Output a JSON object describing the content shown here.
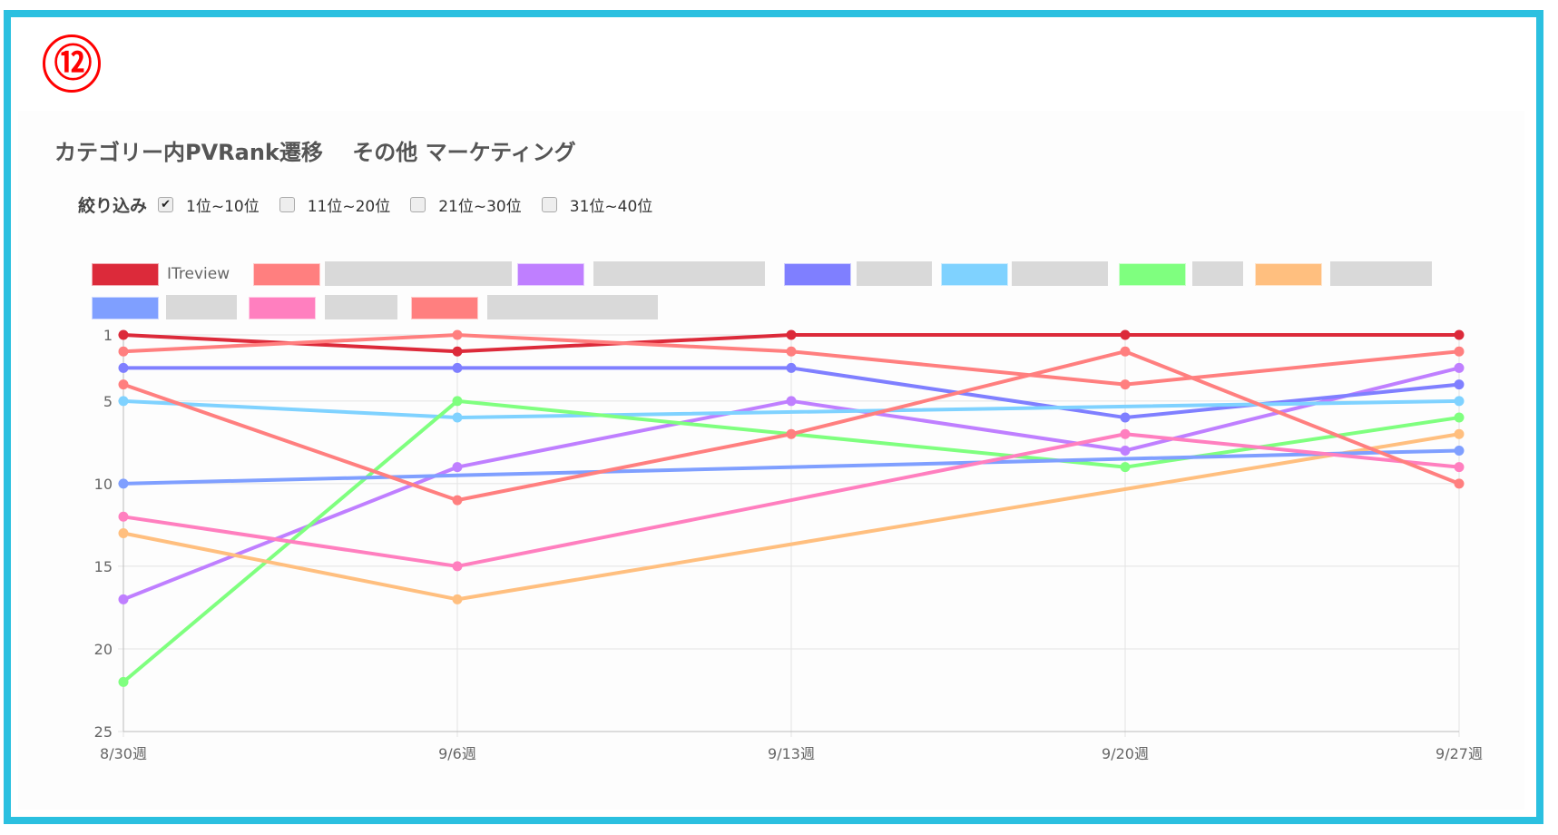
{
  "badge": "⑫",
  "title": "カテゴリー内PVRank遷移　 その他 マーケティング",
  "filter": {
    "label": "絞り込み",
    "options": [
      {
        "label": "1位~10位",
        "checked": true
      },
      {
        "label": "11位~20位",
        "checked": false
      },
      {
        "label": "21位~30位",
        "checked": false
      },
      {
        "label": "31位~40位",
        "checked": false
      }
    ]
  },
  "chart_data": {
    "type": "line",
    "categories": [
      "8/30週",
      "9/6週",
      "9/13週",
      "9/20週",
      "9/27週"
    ],
    "y_axis": {
      "reversed": true,
      "min": 1,
      "max": 25,
      "ticks": [
        1,
        5,
        10,
        15,
        20,
        25
      ]
    },
    "grid": true,
    "legend_position": "top",
    "series": [
      {
        "name": "ITreview",
        "color": "#dc2a3a",
        "values": [
          1,
          2,
          1,
          1,
          1
        ]
      },
      {
        "name": "",
        "color": "#ff7f7f",
        "values": [
          2,
          1,
          2,
          4,
          2
        ]
      },
      {
        "name": "",
        "color": "#bf7fff",
        "values": [
          17,
          9,
          5,
          8,
          3
        ]
      },
      {
        "name": "",
        "color": "#7f7fff",
        "values": [
          3,
          3,
          3,
          6,
          4
        ]
      },
      {
        "name": "",
        "color": "#7fd2ff",
        "values": [
          5,
          6,
          null,
          null,
          5
        ]
      },
      {
        "name": "",
        "color": "#7fff7f",
        "values": [
          22,
          5,
          null,
          9,
          6
        ]
      },
      {
        "name": "",
        "color": "#ffbf7f",
        "values": [
          13,
          17,
          null,
          null,
          7
        ]
      },
      {
        "name": "",
        "color": "#7f9fff",
        "values": [
          10,
          null,
          null,
          null,
          8
        ]
      },
      {
        "name": "",
        "color": "#ff7fbf",
        "values": [
          12,
          15,
          null,
          7,
          9
        ]
      },
      {
        "name": "",
        "color": "#ff7f7f",
        "values": [
          4,
          11,
          7,
          2,
          10
        ]
      }
    ]
  }
}
